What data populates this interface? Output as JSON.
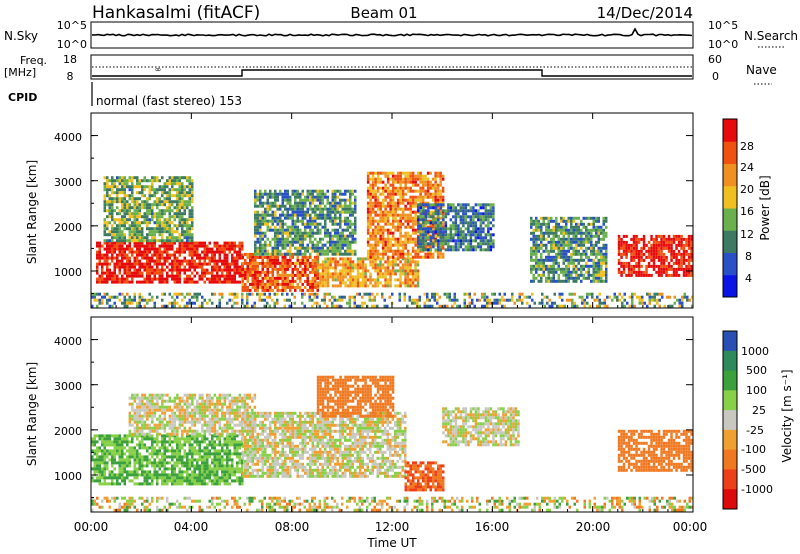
{
  "header": {
    "station": "Hankasalmi (fitACF)",
    "beam": "Beam 01",
    "date": "14/Dec/2014"
  },
  "noise_panel": {
    "left_label": "N.Sky",
    "right_label": "N.Search",
    "y_ticks_left": [
      "10^5",
      "10^0"
    ],
    "y_ticks_right": [
      "10^5",
      "10^0"
    ]
  },
  "freq_panel": {
    "left_label_line1": "Freq.",
    "left_label_line2": "[MHz]",
    "left_ticks": [
      "18",
      "8"
    ],
    "right_label": "Nave",
    "right_ticks": [
      "60",
      "0"
    ]
  },
  "cpid": {
    "label": "CPID",
    "text": "normal (fast stereo) 153"
  },
  "power_panel": {
    "ylabel": "Slant Range [km]",
    "y_ticks": [
      "4000",
      "3000",
      "2000",
      "1000"
    ],
    "colorbar_label": "Power [dB]",
    "colorbar_ticks": [
      "28",
      "24",
      "20",
      "16",
      "12",
      "8",
      "4"
    ],
    "colors": [
      "#0a14e6",
      "#2850c8",
      "#3c7a64",
      "#6ab04c",
      "#f0c020",
      "#f09020",
      "#f05010",
      "#e60a0a"
    ]
  },
  "velocity_panel": {
    "ylabel": "Slant Range [km]",
    "y_ticks": [
      "4000",
      "3000",
      "2000",
      "1000"
    ],
    "colorbar_label": "Velocity [m s⁻¹]",
    "colorbar_ticks": [
      "1000",
      "500",
      "100",
      "25",
      "-25",
      "-100",
      "-500",
      "-1000"
    ],
    "colors": [
      "#2850b4",
      "#2c8a5c",
      "#3ca03c",
      "#88d048",
      "#c8c8c0",
      "#f0a030",
      "#f07820",
      "#ee4018",
      "#dc0a0a"
    ]
  },
  "time_axis": {
    "xlabel": "Time UT",
    "ticks": [
      "00:00",
      "04:00",
      "08:00",
      "12:00",
      "16:00",
      "20:00",
      "00:00"
    ]
  },
  "chart_data": [
    {
      "type": "heatmap",
      "title": "Hankasalmi (fitACF) Beam 01 14/Dec/2014",
      "xlabel": "Time UT",
      "ylabel": "Slant Range [km]",
      "x_range": [
        "00:00",
        "24:00"
      ],
      "ylim": [
        180,
        4500
      ],
      "colorbar": "Power [dB]",
      "colorbar_ticks": [
        4,
        8,
        12,
        16,
        20,
        24,
        28
      ],
      "regions": [
        {
          "t0": 0.2,
          "t1": 6.0,
          "r0": 750,
          "r1": 1650,
          "value": 28
        },
        {
          "t0": 0.5,
          "t1": 4.0,
          "r0": 1700,
          "r1": 3100,
          "value": 14
        },
        {
          "t0": 6.0,
          "t1": 9.0,
          "r0": 600,
          "r1": 1400,
          "value": 24
        },
        {
          "t0": 6.5,
          "t1": 10.5,
          "r0": 1400,
          "r1": 2800,
          "value": 12
        },
        {
          "t0": 9.0,
          "t1": 13.0,
          "r0": 700,
          "r1": 1300,
          "value": 20
        },
        {
          "t0": 11.0,
          "t1": 14.0,
          "r0": 1300,
          "r1": 3200,
          "value": 22
        },
        {
          "t0": 13.0,
          "t1": 16.0,
          "r0": 1500,
          "r1": 2500,
          "value": 10
        },
        {
          "t0": 17.5,
          "t1": 20.5,
          "r0": 800,
          "r1": 2200,
          "value": 12
        },
        {
          "t0": 21.0,
          "t1": 24.0,
          "r0": 900,
          "r1": 1800,
          "value": 28
        }
      ]
    },
    {
      "type": "heatmap",
      "title": "",
      "xlabel": "Time UT",
      "ylabel": "Slant Range [km]",
      "x_range": [
        "00:00",
        "24:00"
      ],
      "ylim": [
        180,
        4500
      ],
      "colorbar": "Velocity [m s⁻¹]",
      "colorbar_ticks": [
        1000,
        500,
        100,
        25,
        -25,
        -100,
        -500,
        -1000
      ],
      "regions": [
        {
          "t0": 0.0,
          "t1": 6.0,
          "r0": 800,
          "r1": 1900,
          "value": 100
        },
        {
          "t0": 1.5,
          "t1": 6.5,
          "r0": 1900,
          "r1": 2800,
          "value": 0
        },
        {
          "t0": 6.0,
          "t1": 12.5,
          "r0": 1000,
          "r1": 2400,
          "value": 0
        },
        {
          "t0": 9.0,
          "t1": 12.0,
          "r0": 2300,
          "r1": 3200,
          "value": -300
        },
        {
          "t0": 12.5,
          "t1": 14.0,
          "r0": 700,
          "r1": 1300,
          "value": -500
        },
        {
          "t0": 14.0,
          "t1": 17.0,
          "r0": 1700,
          "r1": 2500,
          "value": 0
        },
        {
          "t0": 21.0,
          "t1": 24.0,
          "r0": 1100,
          "r1": 2000,
          "value": -200
        }
      ]
    }
  ]
}
